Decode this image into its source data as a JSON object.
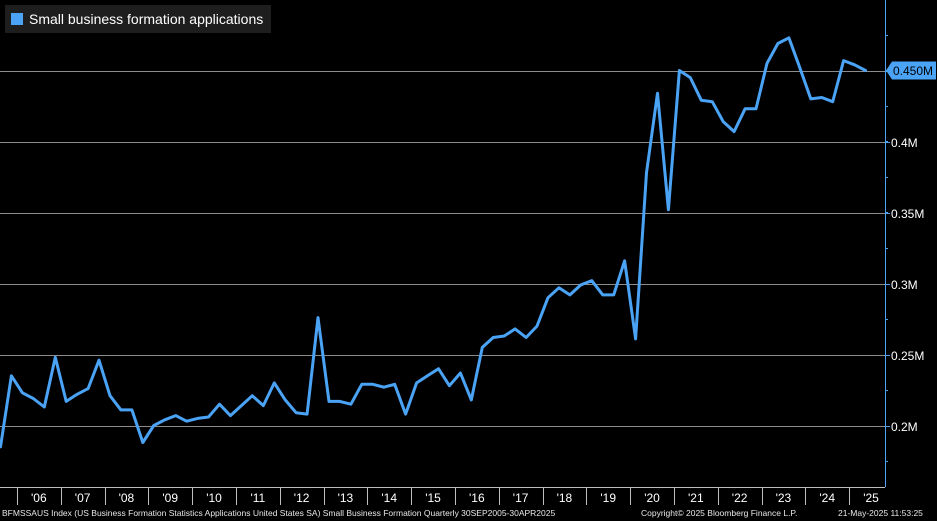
{
  "chart_data": {
    "type": "line",
    "series": [
      {
        "name": "Small business formation applications",
        "color": "#4aa3f5",
        "x": [
          "Q3 2005",
          "Q4 2005",
          "Q1 2006",
          "Q2 2006",
          "Q3 2006",
          "Q4 2006",
          "Q1 2007",
          "Q2 2007",
          "Q3 2007",
          "Q4 2007",
          "Q1 2008",
          "Q2 2008",
          "Q3 2008",
          "Q4 2008",
          "Q1 2009",
          "Q2 2009",
          "Q3 2009",
          "Q4 2009",
          "Q1 2010",
          "Q2 2010",
          "Q3 2010",
          "Q4 2010",
          "Q1 2011",
          "Q2 2011",
          "Q3 2011",
          "Q4 2011",
          "Q1 2012",
          "Q2 2012",
          "Q3 2012",
          "Q4 2012",
          "Q1 2013",
          "Q2 2013",
          "Q3 2013",
          "Q4 2013",
          "Q1 2014",
          "Q2 2014",
          "Q3 2014",
          "Q4 2014",
          "Q1 2015",
          "Q2 2015",
          "Q3 2015",
          "Q4 2015",
          "Q1 2016",
          "Q2 2016",
          "Q3 2016",
          "Q4 2016",
          "Q1 2017",
          "Q2 2017",
          "Q3 2017",
          "Q4 2017",
          "Q1 2018",
          "Q2 2018",
          "Q3 2018",
          "Q4 2018",
          "Q1 2019",
          "Q2 2019",
          "Q3 2019",
          "Q4 2019",
          "Q1 2020",
          "Q2 2020",
          "Q3 2020",
          "Q4 2020",
          "Q1 2021",
          "Q2 2021",
          "Q3 2021",
          "Q4 2021",
          "Q1 2022",
          "Q2 2022",
          "Q3 2022",
          "Q4 2022",
          "Q1 2023",
          "Q2 2023",
          "Q3 2023",
          "Q4 2023",
          "Q1 2024",
          "Q2 2024",
          "Q3 2024",
          "Q4 2024",
          "Q1 2025",
          "Q2 2025"
        ],
        "values": [
          0.185,
          0.235,
          0.223,
          0.219,
          0.213,
          0.248,
          0.217,
          0.222,
          0.226,
          0.246,
          0.221,
          0.211,
          0.211,
          0.188,
          0.2,
          0.204,
          0.207,
          0.203,
          0.205,
          0.206,
          0.215,
          0.207,
          0.214,
          0.221,
          0.214,
          0.23,
          0.218,
          0.209,
          0.208,
          0.276,
          0.217,
          0.217,
          0.215,
          0.229,
          0.229,
          0.227,
          0.229,
          0.208,
          0.23,
          0.235,
          0.24,
          0.228,
          0.237,
          0.218,
          0.255,
          0.262,
          0.263,
          0.268,
          0.262,
          0.27,
          0.29,
          0.297,
          0.292,
          0.299,
          0.302,
          0.292,
          0.292,
          0.316,
          0.261,
          0.378,
          0.434,
          0.352,
          0.45,
          0.445,
          0.429,
          0.428,
          0.414,
          0.407,
          0.423,
          0.423,
          0.455,
          0.469,
          0.473,
          0.452,
          0.43,
          0.431,
          0.428,
          0.457,
          0.454,
          0.45
        ]
      }
    ],
    "ylim": [
      0.165,
      0.5
    ],
    "y_ticks": [
      {
        "value": 0.2,
        "label": "0.2M"
      },
      {
        "value": 0.25,
        "label": "0.25M"
      },
      {
        "value": 0.3,
        "label": "0.3M"
      },
      {
        "value": 0.35,
        "label": "0.35M"
      },
      {
        "value": 0.4,
        "label": "0.4M"
      },
      {
        "value": 0.45,
        "label": "0.45M"
      }
    ],
    "x_ticks": [
      "'06",
      "'07",
      "'08",
      "'09",
      "'10",
      "'11",
      "'12",
      "'13",
      "'14",
      "'15",
      "'16",
      "'17",
      "'18",
      "'19",
      "'20",
      "'21",
      "'22",
      "'23",
      "'24",
      "'25"
    ],
    "last_value_label": "0.450M",
    "axis_position": "right",
    "grid": "horizontal",
    "legend_position": "top-left"
  },
  "footer": {
    "source": "BFMSSAUS Index (US Business Formation Statistics Applications United States SA) Small Business Formation  Quarterly 30SEP2005-30APR2025",
    "copyright": "Copyright© 2025 Bloomberg Finance L.P.",
    "timestamp": "21-May-2025 11:53:25"
  },
  "colors": {
    "background": "#000000",
    "line": "#4aa3f5",
    "grid": "#8c8c8c",
    "axis": "#4aa3f5",
    "legend_bg": "#1e1e1e"
  }
}
